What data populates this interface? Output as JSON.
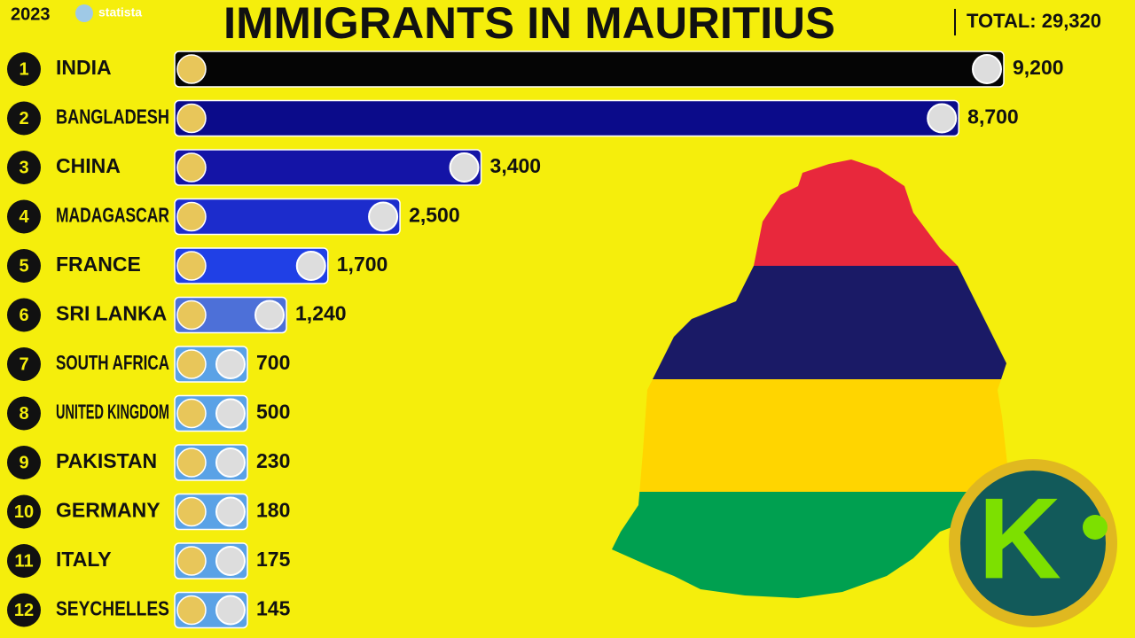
{
  "chart_data": {
    "type": "bar",
    "title": "IMMIGRANTS IN MAURITIUS",
    "year": "2023",
    "source": "statista",
    "total": "TOTAL: 29,320",
    "logo": "K",
    "ranks": [
      1,
      2,
      3,
      4,
      5,
      6,
      7,
      8,
      9,
      10,
      11,
      12
    ],
    "categories": [
      "INDIA",
      "BANGLADESH",
      "CHINA",
      "MADAGASCAR",
      "FRANCE",
      "SRI LANKA",
      "SOUTH AFRICA",
      "UNITED KINGDOM",
      "PAKISTAN",
      "GERMANY",
      "ITALY",
      "SEYCHELLES"
    ],
    "values": [
      9200,
      8700,
      3400,
      2500,
      1700,
      1240,
      700,
      500,
      230,
      180,
      175,
      145
    ],
    "value_labels": [
      "9,200",
      "8,700",
      "3,400",
      "2,500",
      "1,700",
      "1,240",
      "700",
      "500",
      "230",
      "180",
      "175",
      "145"
    ],
    "colors": [
      "#050505",
      "#0b0b8a",
      "#1414a6",
      "#1c2ccc",
      "#2040e6",
      "#4d70d8",
      "#5aa2e6",
      "#5aa2e6",
      "#5aa2e6",
      "#5aa2e6",
      "#5aa2e6",
      "#5aa2e6"
    ]
  }
}
